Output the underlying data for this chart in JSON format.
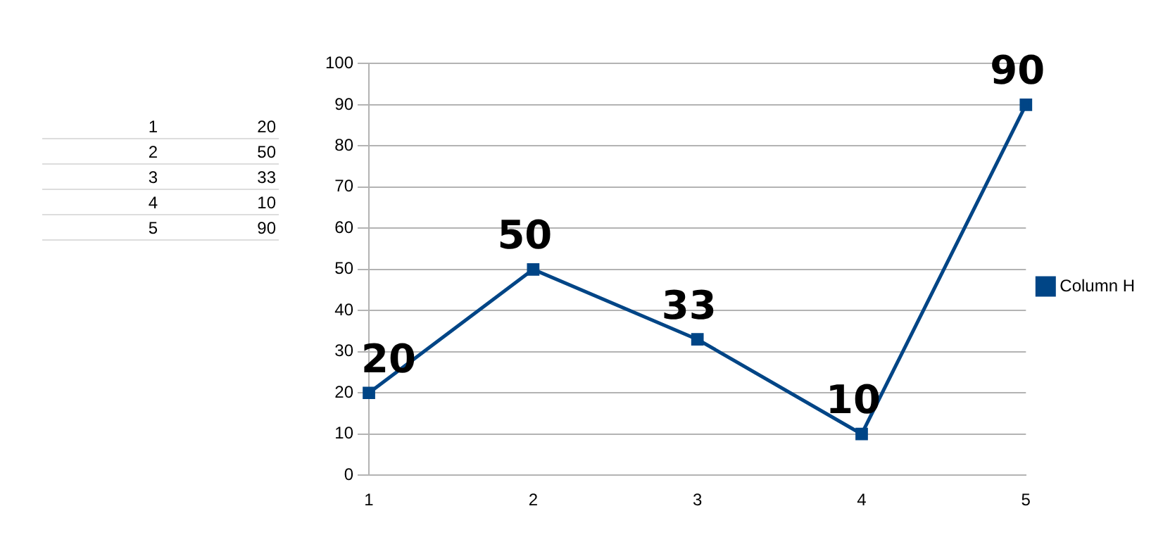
{
  "chart_data": {
    "type": "line",
    "categories": [
      "1",
      "2",
      "3",
      "4",
      "5"
    ],
    "series": [
      {
        "name": "Column H",
        "color": "#004586",
        "values": [
          20,
          50,
          33,
          10,
          90
        ]
      }
    ],
    "annotations": [
      "20",
      "50",
      "33",
      "10",
      "90"
    ],
    "ylim": [
      0,
      100
    ],
    "yticks": [
      0,
      10,
      20,
      30,
      40,
      50,
      60,
      70,
      80,
      90,
      100
    ],
    "grid": "y",
    "legend": "right",
    "marker": "square",
    "line_style": "solid",
    "data_labels": true
  }
}
